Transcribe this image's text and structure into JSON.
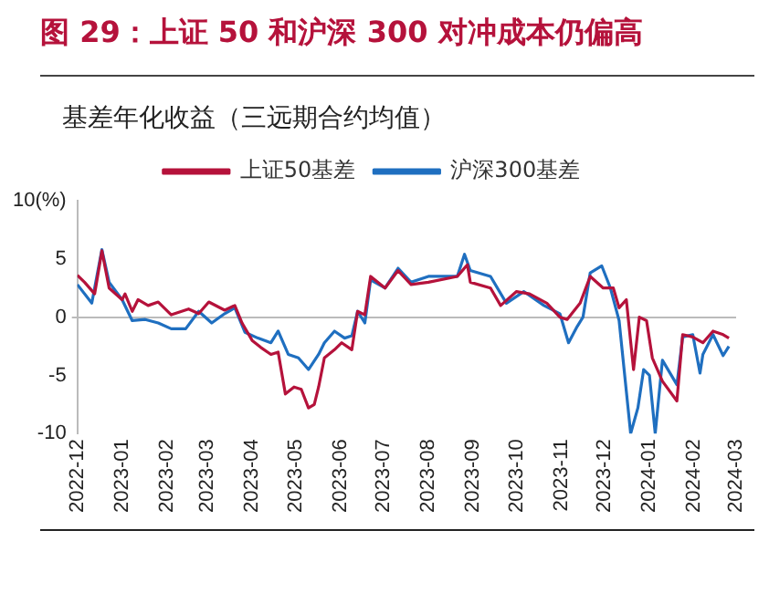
{
  "chart_data": {
    "type": "line",
    "title": "图 29：上证 50 和沪深 300 对冲成本仍偏高",
    "subtitle": "基差年化收益（三远期合约均值）",
    "series": [
      {
        "name": "上证50基差",
        "color": "#b5123b",
        "x": [
          "2022-12-01",
          "2022-12-06",
          "2022-12-13",
          "2022-12-18",
          "2022-12-23",
          "2023-01-01",
          "2023-01-03",
          "2023-01-08",
          "2023-01-12",
          "2023-01-19",
          "2023-01-26",
          "2023-02-04",
          "2023-02-16",
          "2023-02-23",
          "2023-03-02",
          "2023-03-13",
          "2023-03-20",
          "2023-03-25",
          "2023-04-01",
          "2023-04-07",
          "2023-04-14",
          "2023-04-19",
          "2023-04-24",
          "2023-04-30",
          "2023-05-05",
          "2023-05-10",
          "2023-05-14",
          "2023-05-17",
          "2023-05-21",
          "2023-05-28",
          "2023-06-02",
          "2023-06-09",
          "2023-06-13",
          "2023-06-18",
          "2023-06-22",
          "2023-07-02",
          "2023-07-11",
          "2023-07-20",
          "2023-08-01",
          "2023-08-21",
          "2023-08-28",
          "2023-08-30",
          "2023-09-13",
          "2023-09-20",
          "2023-10-01",
          "2023-10-10",
          "2023-10-22",
          "2023-10-31",
          "2023-11-05",
          "2023-11-14",
          "2023-11-21",
          "2023-11-30",
          "2023-12-07",
          "2023-12-11",
          "2023-12-16",
          "2023-12-21",
          "2023-12-25",
          "2023-12-30",
          "2024-01-03",
          "2024-01-10",
          "2024-01-20",
          "2024-01-24",
          "2024-01-31",
          "2024-02-07",
          "2024-02-14",
          "2024-02-21",
          "2024-02-25"
        ],
        "values": [
          3.6,
          3.0,
          2.0,
          5.7,
          2.5,
          1.5,
          2.0,
          0.5,
          1.5,
          1.0,
          1.3,
          0.2,
          0.7,
          0.3,
          1.3,
          0.6,
          1.0,
          -0.5,
          -2.0,
          -2.6,
          -3.2,
          -3.0,
          -6.6,
          -6.0,
          -6.2,
          -7.8,
          -7.5,
          -6.0,
          -3.5,
          -2.8,
          -2.2,
          -2.8,
          0.5,
          0.2,
          3.5,
          2.5,
          4.0,
          2.8,
          3.0,
          3.5,
          4.5,
          3.0,
          2.5,
          1.0,
          2.2,
          2.0,
          1.2,
          0.0,
          -0.2,
          1.2,
          3.5,
          2.5,
          2.5,
          0.8,
          1.5,
          -4.5,
          0.0,
          -0.3,
          -3.5,
          -5.5,
          -7.2,
          -1.5,
          -1.7,
          -2.2,
          -1.2,
          -1.5,
          -1.8
        ]
      },
      {
        "name": "沪深300基差",
        "color": "#1f6fc0",
        "x": [
          "2022-12-01",
          "2022-12-11",
          "2022-12-18",
          "2022-12-23",
          "2023-01-01",
          "2023-01-08",
          "2023-01-17",
          "2023-01-26",
          "2023-02-04",
          "2023-02-14",
          "2023-02-23",
          "2023-03-04",
          "2023-03-13",
          "2023-03-20",
          "2023-03-27",
          "2023-04-05",
          "2023-04-14",
          "2023-04-19",
          "2023-04-26",
          "2023-05-03",
          "2023-05-10",
          "2023-05-17",
          "2023-05-21",
          "2023-05-28",
          "2023-06-04",
          "2023-06-09",
          "2023-06-13",
          "2023-06-18",
          "2023-06-22",
          "2023-07-02",
          "2023-07-11",
          "2023-07-20",
          "2023-08-01",
          "2023-08-21",
          "2023-08-26",
          "2023-08-30",
          "2023-09-13",
          "2023-09-24",
          "2023-10-06",
          "2023-10-20",
          "2023-10-31",
          "2023-11-06",
          "2023-11-12",
          "2023-11-16",
          "2023-11-21",
          "2023-11-29",
          "2023-12-05",
          "2023-12-11",
          "2023-12-19",
          "2023-12-24",
          "2023-12-28",
          "2024-01-01",
          "2024-01-05",
          "2024-01-10",
          "2024-01-20",
          "2024-01-24",
          "2024-01-31",
          "2024-02-05",
          "2024-02-07",
          "2024-02-14",
          "2024-02-21",
          "2024-02-25"
        ],
        "values": [
          2.8,
          1.2,
          5.8,
          3.0,
          1.5,
          -0.3,
          -0.2,
          -0.5,
          -1.0,
          -1.0,
          0.5,
          -0.5,
          0.3,
          0.8,
          -1.3,
          -1.8,
          -2.2,
          -1.2,
          -3.2,
          -3.5,
          -4.5,
          -3.2,
          -2.2,
          -1.2,
          -1.8,
          -1.6,
          0.5,
          -0.5,
          3.2,
          2.5,
          4.2,
          3.0,
          3.5,
          3.5,
          5.4,
          4.0,
          3.5,
          1.2,
          2.2,
          1.0,
          0.3,
          -2.2,
          -0.8,
          0.0,
          3.8,
          4.4,
          2.5,
          -0.3,
          -10,
          -7.8,
          -4.5,
          -5.0,
          -10,
          -3.7,
          -5.8,
          -1.7,
          -1.5,
          -4.8,
          -3.2,
          -1.5,
          -3.3,
          -2.5
        ]
      }
    ],
    "xlim": [
      "2022-12",
      "2024-03"
    ],
    "xticks": [
      "2022-12",
      "2023-01",
      "2023-02",
      "2023-03",
      "2023-04",
      "2023-05",
      "2023-06",
      "2023-07",
      "2023-08",
      "2023-09",
      "2023-10",
      "2023-11",
      "2023-12",
      "2024-01",
      "2024-02",
      "2024-03"
    ],
    "ylim": [
      -10,
      10
    ],
    "yticks": [
      -10,
      -5,
      0,
      5,
      {
        "value": 10,
        "label": "10(%)"
      }
    ],
    "legend": "top",
    "marker": "none",
    "line_style": "solid"
  }
}
